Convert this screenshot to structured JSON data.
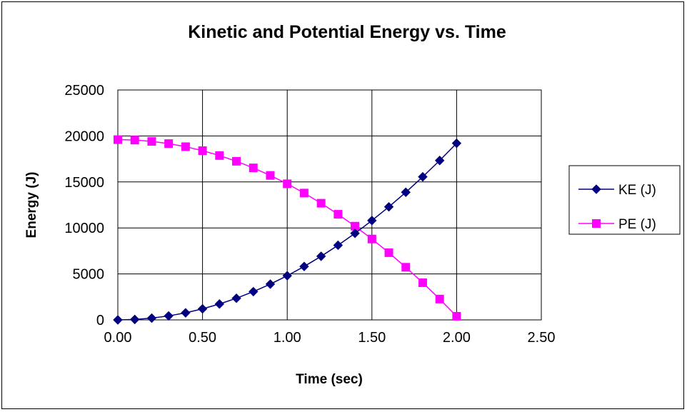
{
  "chart_data": {
    "type": "line",
    "title": "Kinetic and Potential Energy vs. Time",
    "xlabel": "Time (sec)",
    "ylabel": "Energy (J)",
    "xlim": [
      0,
      2.5
    ],
    "ylim": [
      0,
      25000
    ],
    "x_ticks": [
      "0.00",
      "0.50",
      "1.00",
      "1.50",
      "2.00",
      "2.50"
    ],
    "y_ticks": [
      "0",
      "5000",
      "10000",
      "15000",
      "20000",
      "25000"
    ],
    "grid": true,
    "legend_position": "right",
    "x": [
      0.0,
      0.1,
      0.2,
      0.3,
      0.4,
      0.5,
      0.6,
      0.7,
      0.8,
      0.9,
      1.0,
      1.1,
      1.2,
      1.3,
      1.4,
      1.5,
      1.6,
      1.7,
      1.8,
      1.9,
      2.0
    ],
    "series": [
      {
        "name": "KE (J)",
        "color": "#000080",
        "marker": "diamond",
        "values": [
          0,
          48,
          192,
          432,
          768,
          1201,
          1729,
          2353,
          3073,
          3890,
          4802,
          5810,
          6915,
          8115,
          9412,
          10804,
          12293,
          13877,
          15558,
          17334,
          19207
        ]
      },
      {
        "name": "PE (J)",
        "color": "#FF00FF",
        "marker": "square",
        "values": [
          19600,
          19552,
          19408,
          19168,
          18832,
          18399,
          17871,
          17247,
          16527,
          15710,
          14798,
          13790,
          12685,
          11485,
          10188,
          8796,
          7307,
          5723,
          4042,
          2266,
          393
        ]
      }
    ]
  }
}
